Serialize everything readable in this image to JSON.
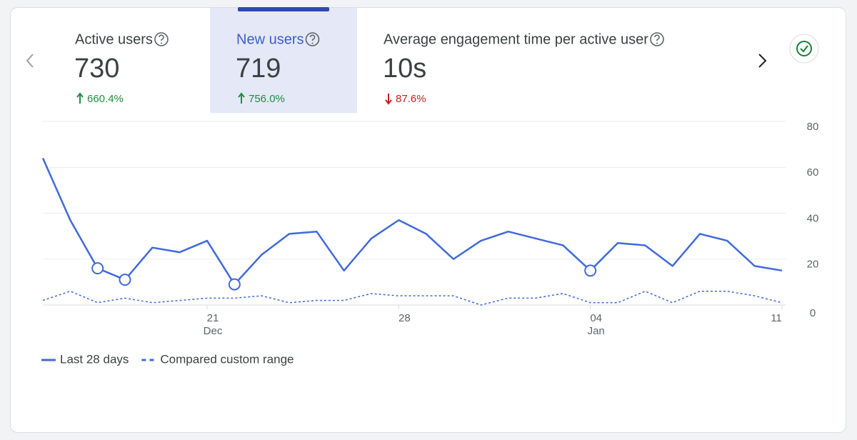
{
  "metrics": [
    {
      "label": "Active users",
      "value": "730",
      "change": "660.4%",
      "direction": "up",
      "selected": false
    },
    {
      "label": "New users",
      "value": "719",
      "change": "756.0%",
      "direction": "up",
      "selected": true
    },
    {
      "label": "Average engagement time per active user",
      "value": "10s",
      "change": "87.6%",
      "direction": "down",
      "selected": false
    }
  ],
  "chart_data": {
    "type": "line",
    "x": [
      null,
      null,
      null,
      null,
      null,
      null,
      "21",
      null,
      null,
      null,
      null,
      null,
      null,
      "28",
      null,
      null,
      null,
      null,
      null,
      null,
      "04",
      null,
      null,
      null,
      null,
      null,
      null,
      "11"
    ],
    "x_months": [
      null,
      null,
      null,
      null,
      null,
      null,
      "Dec",
      null,
      null,
      null,
      null,
      null,
      null,
      null,
      null,
      null,
      null,
      null,
      null,
      null,
      "Jan",
      null,
      null,
      null,
      null,
      null,
      null,
      null
    ],
    "series": [
      {
        "name": "Last 28 days",
        "color": "#4169d9",
        "dashed": false,
        "highlighted_points": [
          2,
          3,
          7,
          20
        ],
        "values": [
          64,
          37,
          16,
          11,
          25,
          23,
          28,
          9,
          22,
          31,
          32,
          15,
          29,
          37,
          31,
          20,
          28,
          32,
          29,
          26,
          15,
          27,
          26,
          17,
          31,
          28,
          17,
          15
        ]
      },
      {
        "name": "Compared custom range",
        "color": "#4169d9",
        "dashed": true,
        "values": [
          2,
          6,
          1,
          3,
          1,
          2,
          3,
          3,
          4,
          1,
          2,
          2,
          5,
          4,
          4,
          4,
          0,
          3,
          3,
          5,
          1,
          1,
          6,
          1,
          6,
          6,
          4,
          1
        ]
      }
    ],
    "ylim": [
      0,
      80
    ],
    "yticks": [
      0,
      20,
      40,
      60,
      80
    ],
    "grid": true,
    "y_axis_side": "right"
  }
}
